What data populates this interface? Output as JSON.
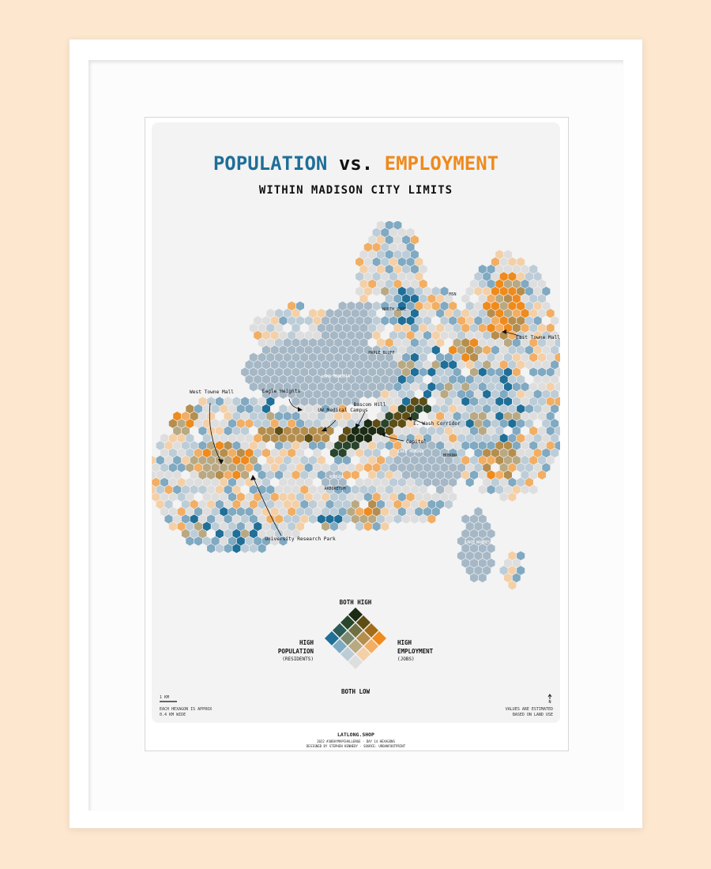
{
  "title": {
    "population_word": "POPULATION",
    "vs_word": "vs.",
    "employment_word": "EMPLOYMENT",
    "subtitle": "WITHIN MADISON CITY LIMITS"
  },
  "colors": {
    "population": "#1f6f98",
    "employment": "#ef8a1c",
    "water": "#a6b8c6",
    "background": "#f3f3f3",
    "bivariate_grid": [
      [
        "#dedede",
        "#f4d0a8",
        "#f2ae63",
        "#ef8a1c"
      ],
      [
        "#bccdd8",
        "#b9a983",
        "#b58e4e",
        "#a36c1a"
      ],
      [
        "#80a9c2",
        "#7e8a6f",
        "#6f6f42",
        "#5e4e16"
      ],
      [
        "#1f6f98",
        "#2c5b57",
        "#29452c",
        "#1c2b14"
      ]
    ]
  },
  "labels": {
    "north_side": "NORTH SIDE",
    "maple_bluff": "MAPLE BLUFF",
    "lake_mendota": "LAKE MENDOTA",
    "lake_monona": "LAKE MONONA",
    "monona": "MONONA",
    "lake_waubesa": "LAKE WAUBESA",
    "arboretum": "ARBORETUM",
    "wingra": "WINGRA",
    "msn": "MSN"
  },
  "annotations": {
    "west_towne": "West Towne Mall",
    "eagle_heights": "Eagle Heights",
    "uw_medical": "UW Medical Campus",
    "bascom_hill": "Bascom Hill",
    "e_wash": "E. Wash Corridor",
    "capitol": "Capitol",
    "east_towne": "East Towne Mall",
    "research_park": "University Research Park"
  },
  "legend": {
    "top": "BOTH HIGH",
    "bottom": "BOTH LOW",
    "left_title": "HIGH POPULATION",
    "left_sub": "(RESIDENTS)",
    "right_title": "HIGH EMPLOYMENT",
    "right_sub": "(JOBS)"
  },
  "footer": {
    "scale": "1 KM",
    "hex_note": "EACH HEXAGON IS APPROX 0.4 KM WIDE",
    "north": "N",
    "values_note": "VALUES ARE ESTIMATED BASED ON LAND USE",
    "shop": "LATLONG.SHOP",
    "line1": "2022 #30DAYMAPCHALLENGE · DAY 14 HEXAGONS",
    "line2": "DESIGNED BY STEPHEN KENNEDY · SOURCE: URBANFOOTPRINT"
  }
}
